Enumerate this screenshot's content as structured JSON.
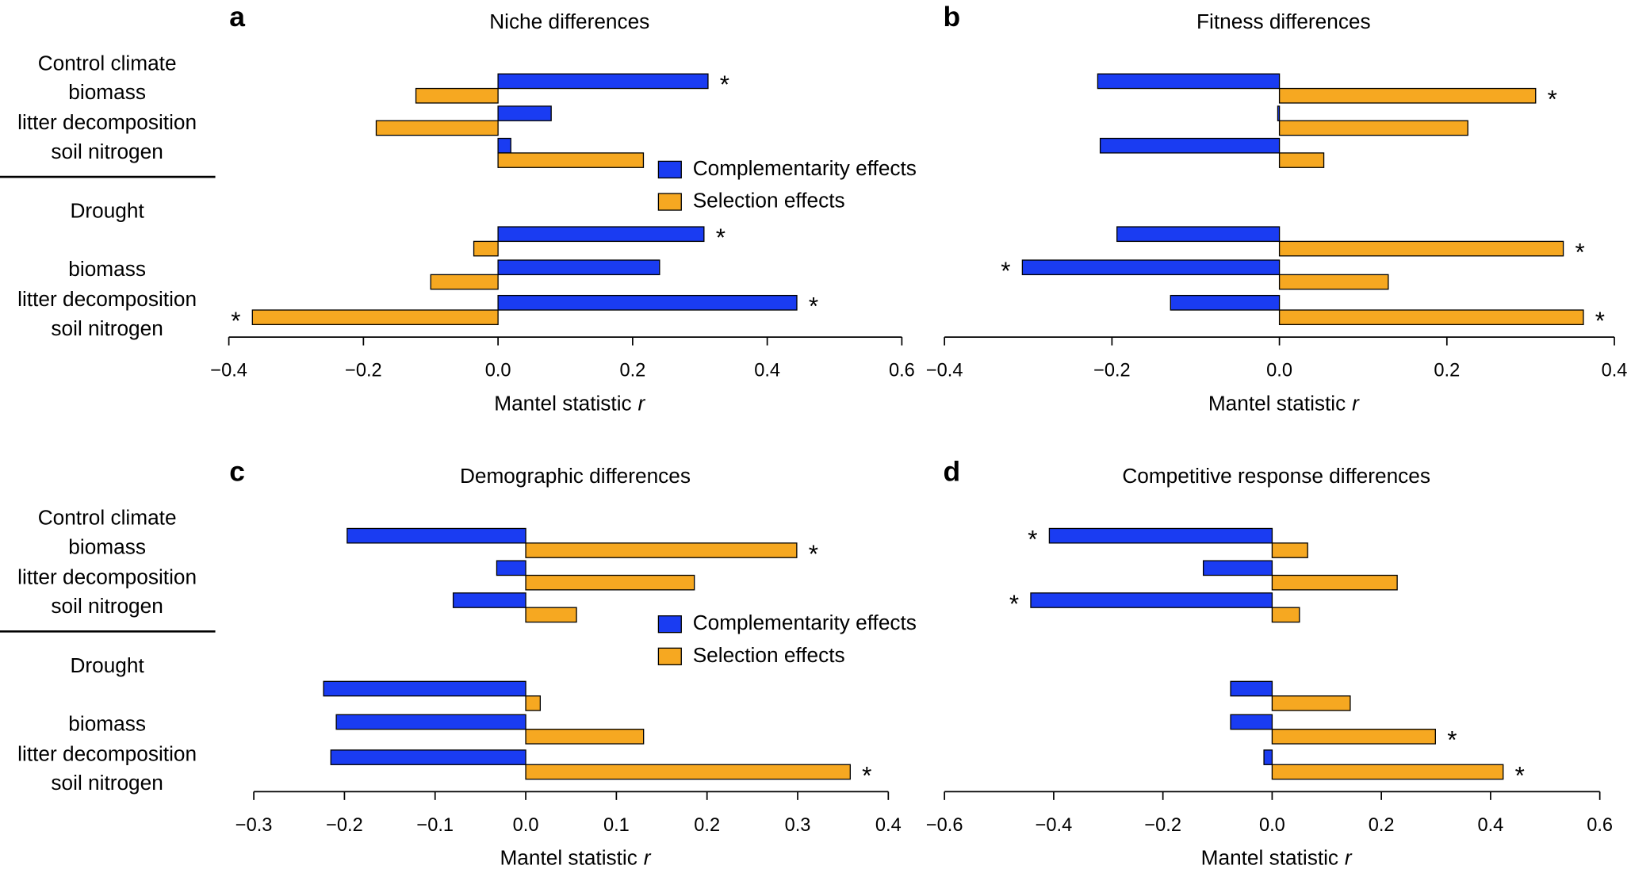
{
  "chart_data": [
    {
      "type": "hbar",
      "letter": "a",
      "title": "Niche differences",
      "group_labels": [
        "Control climate",
        "Drought"
      ],
      "categories": [
        "biomass",
        "litter decomposition",
        "soil nitrogen",
        "biomass",
        "litter decomposition",
        "soil nitrogen"
      ],
      "series": [
        {
          "name": "Complementarity effects",
          "color": "#1a3cf2",
          "values": [
            0.312,
            0.079,
            0.019,
            0.306,
            0.24,
            0.444
          ],
          "markers": [
            "*",
            null,
            null,
            "*",
            null,
            "*"
          ]
        },
        {
          "name": "Selection effects",
          "color": "#f6a821",
          "values": [
            -0.122,
            -0.181,
            0.216,
            -0.036,
            -0.1,
            -0.365
          ],
          "markers": [
            null,
            null,
            null,
            null,
            null,
            "*"
          ]
        }
      ],
      "xlim": [
        -0.4,
        0.6
      ],
      "xticks": [
        {
          "value": -0.4,
          "label": "−0.4"
        },
        {
          "value": -0.2,
          "label": "−0.2"
        },
        {
          "value": 0,
          "label": "0.0"
        },
        0.2,
        0.4,
        0.6
      ],
      "xlabel": {
        "text": "Mantel statistic",
        "variable": "r"
      },
      "legend": "center-right"
    },
    {
      "type": "hbar",
      "letter": "b",
      "title": "Fitness differences",
      "categories": [
        null,
        null,
        null,
        null,
        null,
        null
      ],
      "series": [
        {
          "name": "Complementarity effects",
          "color": "#1a3cf2",
          "values": [
            -0.217,
            -0.002,
            -0.214,
            -0.194,
            -0.307,
            -0.13
          ],
          "markers": [
            null,
            null,
            null,
            null,
            "*",
            null
          ]
        },
        {
          "name": "Selection effects",
          "color": "#f6a821",
          "values": [
            0.306,
            0.225,
            0.053,
            0.339,
            0.13,
            0.363
          ],
          "markers": [
            "*",
            null,
            null,
            "*",
            null,
            "*"
          ]
        }
      ],
      "xlim": [
        -0.4,
        0.4
      ],
      "xticks": [
        {
          "value": -0.4,
          "label": "−0.4"
        },
        {
          "value": -0.2,
          "label": "−0.2"
        },
        {
          "value": 0,
          "label": "0.0"
        },
        0.2,
        0.4
      ],
      "xlabel": {
        "text": "Mantel statistic",
        "variable": "r"
      }
    },
    {
      "type": "hbar",
      "letter": "c",
      "title": "Demographic differences",
      "group_labels": [
        "Control climate",
        "Drought"
      ],
      "categories": [
        "biomass",
        "litter decomposition",
        "soil nitrogen",
        "biomass",
        "litter decomposition",
        "soil nitrogen"
      ],
      "series": [
        {
          "name": "Complementarity effects",
          "color": "#1a3cf2",
          "values": [
            -0.197,
            -0.032,
            -0.08,
            -0.223,
            -0.209,
            -0.215
          ],
          "markers": [
            null,
            null,
            null,
            null,
            null,
            null
          ]
        },
        {
          "name": "Selection effects",
          "color": "#f6a821",
          "values": [
            0.299,
            0.186,
            0.056,
            0.016,
            0.13,
            0.358
          ],
          "markers": [
            "*",
            null,
            null,
            null,
            null,
            "*"
          ]
        }
      ],
      "xlim": [
        -0.3,
        0.4
      ],
      "xticks": [
        {
          "value": -0.3,
          "label": "−0.3"
        },
        {
          "value": -0.2,
          "label": "−0.2"
        },
        {
          "value": -0.1,
          "label": "−0.1"
        },
        {
          "value": 0,
          "label": "0.0"
        },
        0.1,
        0.2,
        0.3,
        0.4
      ],
      "xlabel": {
        "text": "Mantel statistic",
        "variable": "r"
      },
      "legend": "center-right"
    },
    {
      "type": "hbar",
      "letter": "d",
      "title": "Competitive response differences",
      "categories": [
        null,
        null,
        null,
        null,
        null,
        null
      ],
      "series": [
        {
          "name": "Complementarity effects",
          "color": "#1a3cf2",
          "values": [
            -0.408,
            -0.126,
            -0.442,
            -0.076,
            -0.076,
            -0.015
          ],
          "markers": [
            "*",
            null,
            "*",
            null,
            null,
            null
          ]
        },
        {
          "name": "Selection effects",
          "color": "#f6a821",
          "values": [
            0.065,
            0.229,
            0.05,
            0.143,
            0.299,
            0.423
          ],
          "markers": [
            null,
            null,
            null,
            null,
            "*",
            "*"
          ]
        }
      ],
      "xlim": [
        -0.6,
        0.6
      ],
      "xticks": [
        {
          "value": -0.6,
          "label": "−0.6"
        },
        {
          "value": -0.4,
          "label": "−0.4"
        },
        {
          "value": -0.2,
          "label": "−0.2"
        },
        {
          "value": 0,
          "label": "0.0"
        },
        0.2,
        0.4,
        0.6
      ],
      "xlabel": {
        "text": "Mantel statistic",
        "variable": "r"
      }
    }
  ]
}
